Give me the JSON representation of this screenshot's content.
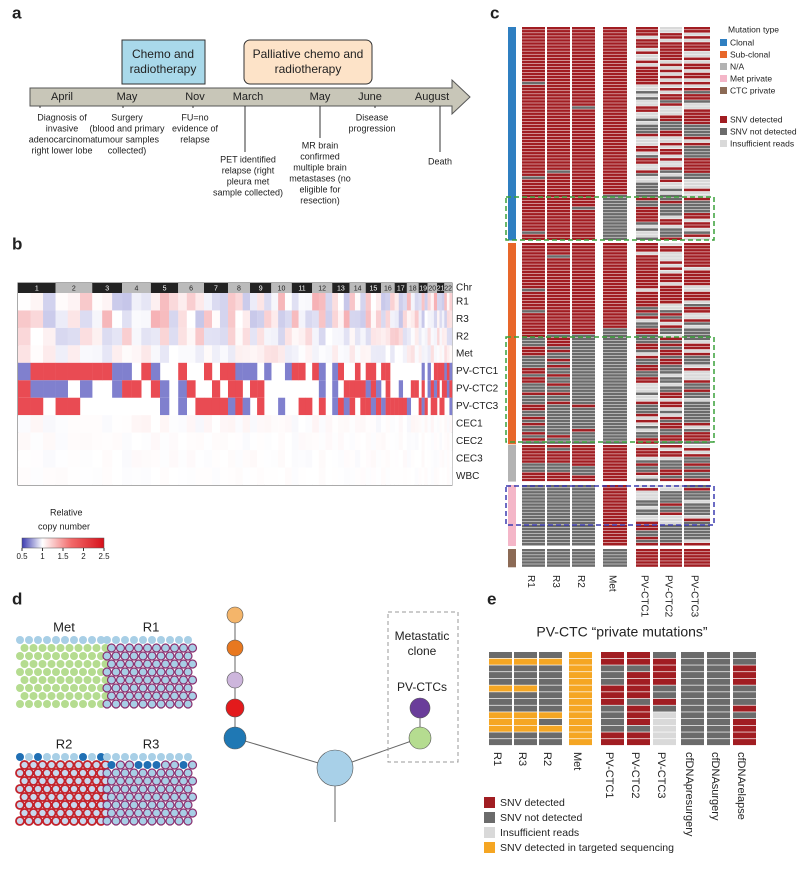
{
  "panels": {
    "a": {
      "label": "a",
      "treatments": [
        [
          "Chemo and",
          "radiotherapy"
        ],
        [
          "Palliative chemo and",
          "radiotherapy"
        ]
      ],
      "months": [
        "April",
        "May",
        "Nov",
        "March",
        "May",
        "June",
        "August"
      ],
      "events": [
        [
          "Diagnosis of",
          "invasive",
          "adenocarcinoma",
          "right lower lobe"
        ],
        [
          "Surgery",
          "(blood and primary",
          "tumour samples",
          "collected)"
        ],
        [
          "FU=no",
          "evidence of",
          "relapse"
        ],
        [
          "PET identified",
          "relapse (right",
          "pleura met",
          "sample collected)"
        ],
        [
          "MR brain",
          "confirmed",
          "multiple brain",
          "metastases (no",
          "eligible for",
          "resection)"
        ],
        [
          "Disease",
          "progression"
        ],
        [
          "Death"
        ]
      ]
    },
    "b": {
      "label": "b",
      "chromosomes": [
        "1",
        "2",
        "3",
        "4",
        "5",
        "6",
        "7",
        "8",
        "9",
        "10",
        "11",
        "12",
        "13",
        "14",
        "15",
        "16",
        "17",
        "18",
        "19",
        "20",
        "21",
        "22"
      ],
      "rows": [
        "Chr",
        "R1",
        "R3",
        "R2",
        "Met",
        "PV-CTC1",
        "PV-CTC2",
        "PV-CTC3",
        "CEC1",
        "CEC2",
        "CEC3",
        "WBC"
      ],
      "scale_title": [
        "Relative",
        "copy number"
      ],
      "scale_lim": [
        0.5,
        2.5
      ],
      "scale_ticks": [
        0.5,
        1,
        1.5,
        2,
        2.5
      ]
    },
    "c": {
      "label": "c",
      "legend_title": "Mutation type",
      "mutation_types": [
        {
          "name": "Clonal",
          "color": "#2f7fc1"
        },
        {
          "name": "Sub-clonal",
          "color": "#e8672a"
        },
        {
          "name": "N/A",
          "color": "#b3b3b3"
        },
        {
          "name": "Met private",
          "color": "#f4b6c8"
        },
        {
          "name": "CTC private",
          "color": "#8c6a55"
        }
      ],
      "snv_legend": [
        {
          "name": "SNV detected",
          "color": "#a11d22"
        },
        {
          "name": "SNV not detected",
          "color": "#6b6b6b"
        },
        {
          "name": "Insufficient reads",
          "color": "#d9d9d9"
        }
      ],
      "columns": [
        "R1",
        "R3",
        "R2",
        "Met",
        "PV-CTC1",
        "PV-CTC2",
        "PV-CTC3"
      ]
    },
    "d": {
      "label": "d",
      "samples": [
        "Met",
        "R1",
        "R2",
        "R3"
      ],
      "clone_box": [
        "Metastatic",
        "clone"
      ],
      "ctc_label": "PV-CTCs"
    },
    "e": {
      "label": "e",
      "title": "PV-CTC “private mutations”",
      "columns": [
        "R1",
        "R3",
        "R2",
        "Met",
        "PV-CTC1",
        "PV-CTC2",
        "PV-CTC3",
        "cfDNApresurgery",
        "cfDNAsurgery",
        "cfDNArelapse"
      ],
      "legend": [
        {
          "name": "SNV detected",
          "color": "#a11d22"
        },
        {
          "name": "SNV not detected",
          "color": "#6b6b6b"
        },
        {
          "name": "Insufficient reads",
          "color": "#d9d9d9"
        },
        {
          "name": "SNV detected in targeted sequencing",
          "color": "#f5a623"
        }
      ]
    }
  }
}
